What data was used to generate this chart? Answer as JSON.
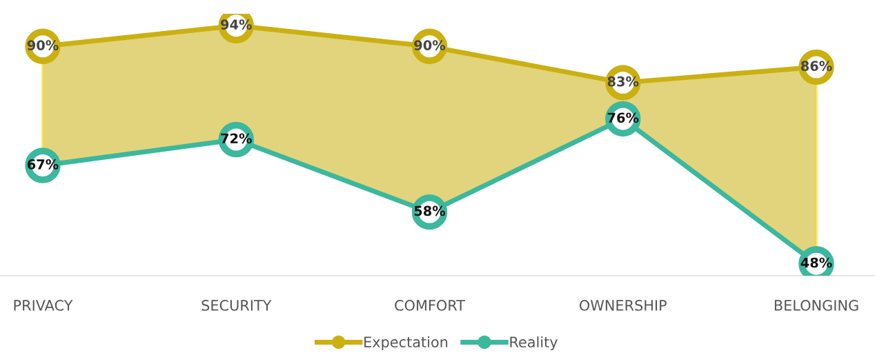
{
  "chart_data": {
    "type": "line",
    "categories": [
      "PRIVACY",
      "SECURITY",
      "COMFORT",
      "OWNERSHIP",
      "BELONGING"
    ],
    "series": [
      {
        "name": "Expectation",
        "color": "#cbb012",
        "values": [
          90,
          94,
          90,
          83,
          86
        ],
        "value_labels": [
          "90%",
          "94%",
          "90%",
          "83%",
          "86%"
        ],
        "lower": [
          67,
          72,
          58,
          76,
          48
        ],
        "upper": [
          90,
          94,
          90,
          83,
          86
        ]
      },
      {
        "name": "Reality",
        "color": "#3bb89e",
        "values": [
          67,
          72,
          58,
          76,
          48
        ],
        "value_labels": [
          "67%",
          "72%",
          "58%",
          "76%",
          "48%"
        ]
      }
    ],
    "tick_labels": "x",
    "marker": "circle",
    "line_style": "solid",
    "grid": false,
    "legend": "bottom"
  }
}
